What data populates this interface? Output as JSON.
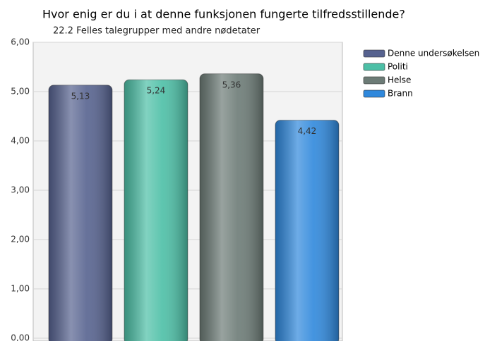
{
  "chart_data": {
    "type": "bar",
    "title": "Hvor enig er du i at denne funksjonen fungerte tilfredsstillende?",
    "subtitle": "22.2 Felles talegrupper med andre nødetater",
    "series": [
      {
        "name": "Denne undersøkelsen",
        "color": "#56628f",
        "values": [
          5.13
        ],
        "value_labels": [
          "5,13"
        ]
      },
      {
        "name": "Politi",
        "color": "#4cbfa6",
        "values": [
          5.24
        ],
        "value_labels": [
          "5,24"
        ]
      },
      {
        "name": "Helse",
        "color": "#6c7b76",
        "values": [
          5.36
        ],
        "value_labels": [
          "5,36"
        ]
      },
      {
        "name": "Brann",
        "color": "#2f88dc",
        "values": [
          4.42
        ],
        "value_labels": [
          "4,42"
        ]
      }
    ],
    "ylim": [
      0,
      6
    ],
    "yticks": [
      {
        "value": 0,
        "label": "0,00"
      },
      {
        "value": 1,
        "label": "1,00"
      },
      {
        "value": 2,
        "label": "2,00"
      },
      {
        "value": 3,
        "label": "3,00"
      },
      {
        "value": 4,
        "label": "4,00"
      },
      {
        "value": 5,
        "label": "5,00"
      },
      {
        "value": 6,
        "label": "6,00"
      }
    ],
    "grid": true
  }
}
